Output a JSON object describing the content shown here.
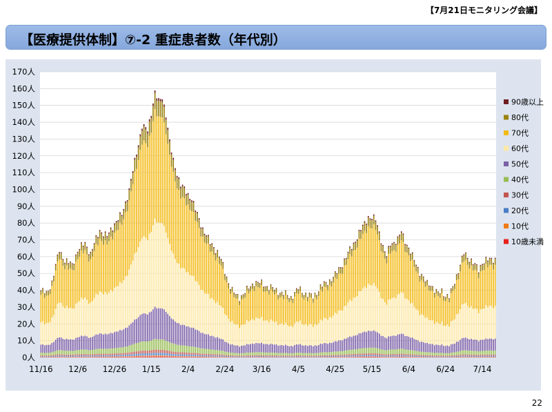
{
  "header": {
    "tag": "【7月21日モニタリング会議】"
  },
  "slide": {
    "title": "【医療提供体制】⑦-2 重症患者数（年代別）",
    "page_number": "22"
  },
  "chart_data": {
    "type": "bar",
    "stacked": true,
    "title": "",
    "xlabel": "",
    "ylabel": "",
    "ylim": [
      0,
      170
    ],
    "yticks": [
      0,
      10,
      20,
      30,
      40,
      50,
      60,
      70,
      80,
      90,
      100,
      110,
      120,
      130,
      140,
      150,
      160,
      170
    ],
    "ytick_suffix": "人",
    "x_tick_labels": [
      "11/16",
      "12/6",
      "12/26",
      "1/15",
      "2/4",
      "2/24",
      "3/16",
      "4/5",
      "4/25",
      "5/15",
      "6/4",
      "6/24",
      "7/14"
    ],
    "x_tick_day_index": [
      0,
      20,
      40,
      60,
      80,
      100,
      120,
      140,
      160,
      180,
      200,
      220,
      240
    ],
    "num_days": 248,
    "start_date": "11/16",
    "legend_position": "right",
    "total_keypoints": [
      [
        0,
        40
      ],
      [
        3,
        38
      ],
      [
        6,
        45
      ],
      [
        10,
        64
      ],
      [
        13,
        58
      ],
      [
        17,
        55
      ],
      [
        20,
        64
      ],
      [
        24,
        68
      ],
      [
        27,
        62
      ],
      [
        32,
        76
      ],
      [
        36,
        72
      ],
      [
        40,
        80
      ],
      [
        44,
        85
      ],
      [
        48,
        100
      ],
      [
        52,
        122
      ],
      [
        55,
        138
      ],
      [
        58,
        135
      ],
      [
        60,
        146
      ],
      [
        62,
        158
      ],
      [
        64,
        152
      ],
      [
        66,
        155
      ],
      [
        68,
        145
      ],
      [
        70,
        128
      ],
      [
        72,
        117
      ],
      [
        74,
        110
      ],
      [
        76,
        103
      ],
      [
        78,
        100
      ],
      [
        80,
        97
      ],
      [
        82,
        95
      ],
      [
        84,
        88
      ],
      [
        86,
        82
      ],
      [
        88,
        77
      ],
      [
        90,
        73
      ],
      [
        92,
        68
      ],
      [
        94,
        66
      ],
      [
        96,
        63
      ],
      [
        98,
        58
      ],
      [
        100,
        51
      ],
      [
        102,
        45
      ],
      [
        104,
        40
      ],
      [
        106,
        37
      ],
      [
        108,
        36
      ],
      [
        112,
        40
      ],
      [
        116,
        45
      ],
      [
        120,
        44
      ],
      [
        124,
        42
      ],
      [
        128,
        40
      ],
      [
        132,
        38
      ],
      [
        136,
        36
      ],
      [
        140,
        41
      ],
      [
        144,
        38
      ],
      [
        148,
        36
      ],
      [
        152,
        42
      ],
      [
        156,
        45
      ],
      [
        160,
        49
      ],
      [
        164,
        56
      ],
      [
        168,
        64
      ],
      [
        172,
        72
      ],
      [
        176,
        80
      ],
      [
        178,
        84
      ],
      [
        180,
        83
      ],
      [
        182,
        82
      ],
      [
        184,
        75
      ],
      [
        186,
        66
      ],
      [
        188,
        60
      ],
      [
        190,
        68
      ],
      [
        192,
        69
      ],
      [
        194,
        70
      ],
      [
        196,
        75
      ],
      [
        198,
        70
      ],
      [
        200,
        65
      ],
      [
        202,
        60
      ],
      [
        204,
        56
      ],
      [
        206,
        51
      ],
      [
        208,
        47
      ],
      [
        210,
        44
      ],
      [
        212,
        44
      ],
      [
        214,
        40
      ],
      [
        216,
        38
      ],
      [
        218,
        40
      ],
      [
        220,
        37
      ],
      [
        222,
        36
      ],
      [
        224,
        42
      ],
      [
        226,
        49
      ],
      [
        228,
        55
      ],
      [
        230,
        62
      ],
      [
        232,
        60
      ],
      [
        234,
        58
      ],
      [
        236,
        55
      ],
      [
        238,
        52
      ],
      [
        240,
        57
      ],
      [
        242,
        58
      ],
      [
        244,
        58
      ],
      [
        247,
        59
      ]
    ],
    "series": [
      {
        "name": "10歳未満",
        "color": "#e8201b",
        "share": 0.005
      },
      {
        "name": "10代",
        "color": "#f07a14",
        "share": 0.003
      },
      {
        "name": "20代",
        "color": "#4a7cc4",
        "share": 0.01
      },
      {
        "name": "30代",
        "color": "#c2574f",
        "share": 0.012
      },
      {
        "name": "40代",
        "color": "#98bd55",
        "share": 0.04
      },
      {
        "name": "50代",
        "color": "#7b5fa7",
        "share": 0.12
      },
      {
        "name": "60代",
        "color": "#fde8a6",
        "share": 0.33
      },
      {
        "name": "70代",
        "color": "#f3bb18",
        "share": 0.41
      },
      {
        "name": "80代",
        "color": "#9b8311",
        "share": 0.06
      },
      {
        "name": "90歳以上",
        "color": "#6e1f23",
        "share": 0.01
      }
    ]
  }
}
